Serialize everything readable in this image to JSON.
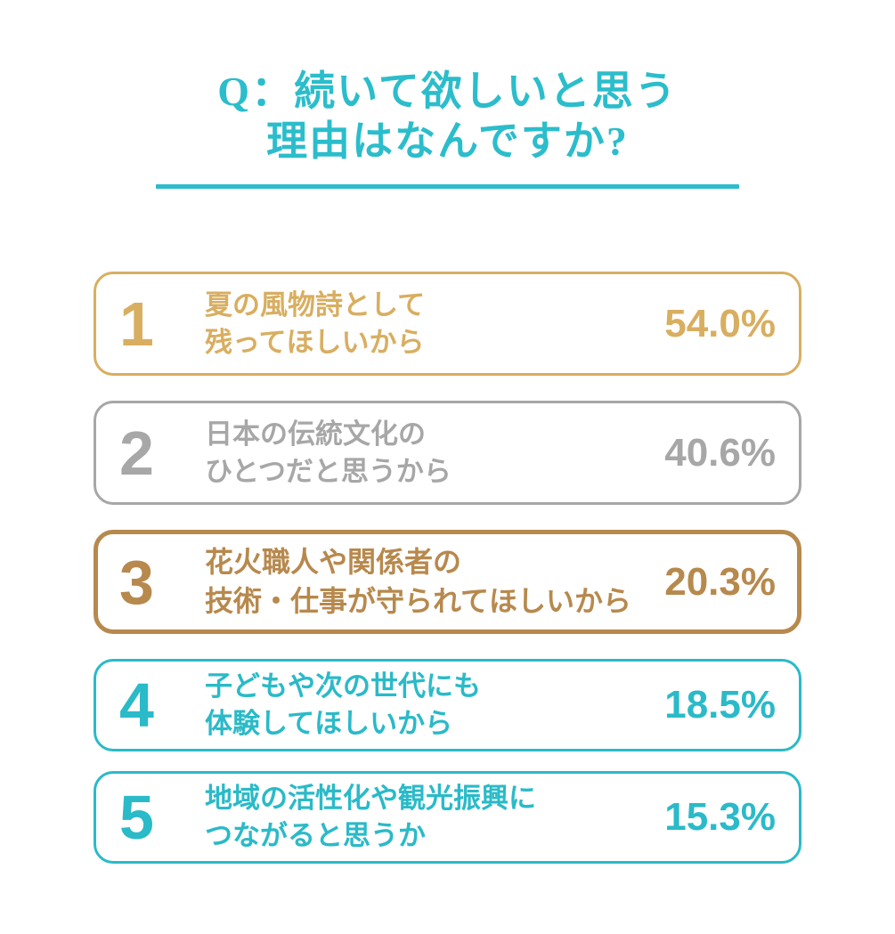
{
  "title": {
    "line1": "Q：続いて欲しいと思う",
    "line2": "理由はなんですか?",
    "color": "#2BBDCB"
  },
  "colors": {
    "rank1_gold": "#D8AE60",
    "rank2_silver": "#A7A7A7",
    "rank3_bronze": "#B7894D",
    "rank45_teal": "#2ABAC8",
    "title_teal": "#2BBDCB",
    "background": "#FFFFFF"
  },
  "ranking": {
    "items": [
      {
        "rank": "1",
        "line1": "夏の風物詩として",
        "line2": "残ってほしいから",
        "value": "54.0%",
        "color": "#D8AE60"
      },
      {
        "rank": "2",
        "line1": "日本の伝統文化の",
        "line2": "ひとつだと思うから",
        "value": "40.6%",
        "color": "#A7A7A7"
      },
      {
        "rank": "3",
        "line1": "花火職人や関係者の",
        "line2": "技術・仕事が守られてほしいから",
        "value": "20.3%",
        "color": "#B7894D"
      },
      {
        "rank": "4",
        "line1": "子どもや次の世代にも",
        "line2": "体験してほしいから",
        "value": "18.5%",
        "color": "#2ABAC8"
      },
      {
        "rank": "5",
        "line1": "地域の活性化や観光振興に",
        "line2": "つながると思うか",
        "value": "15.3%",
        "color": "#2ABAC8"
      }
    ]
  },
  "chart_data": {
    "type": "table",
    "title": "Q：続いて欲しいと思う理由はなんですか?",
    "categories": [
      "夏の風物詩として残ってほしいから",
      "日本の伝統文化のひとつだと思うから",
      "花火職人や関係者の技術・仕事が守られてほしいから",
      "子どもや次の世代にも体験してほしいから",
      "地域の活性化や観光振興につながると思うか"
    ],
    "values": [
      54.0,
      40.6,
      20.3,
      18.5,
      15.3
    ],
    "unit": "%",
    "ranks": [
      1,
      2,
      3,
      4,
      5
    ],
    "legend_position": "none",
    "grid": false
  }
}
